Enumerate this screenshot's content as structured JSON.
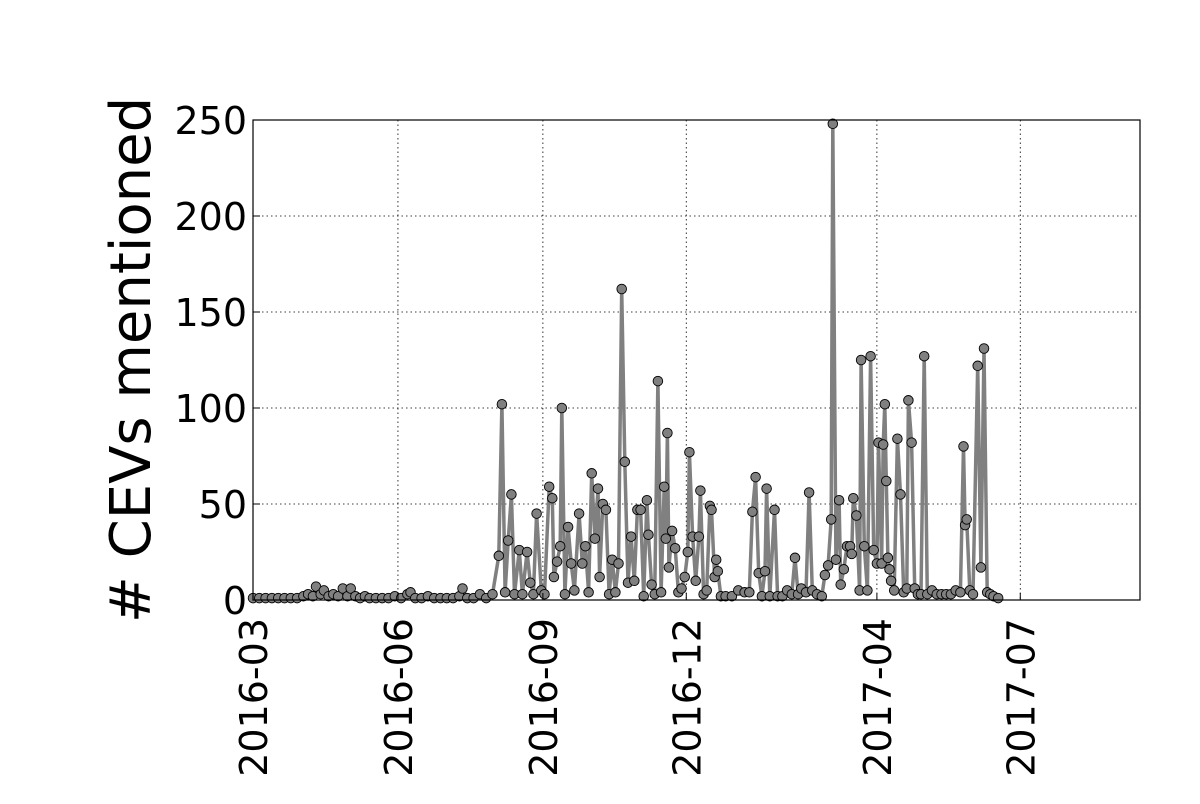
{
  "chart_data": {
    "type": "line",
    "title": "",
    "xlabel": "",
    "ylabel": "# CEVs mentioned",
    "x_range": [
      "2016-03-01",
      "2017-09-15"
    ],
    "ylim": [
      0,
      250
    ],
    "x_ticks": [
      "2016-03",
      "2016-06",
      "2016-09",
      "2016-12",
      "2017-04",
      "2017-07"
    ],
    "y_ticks": [
      "0",
      "50",
      "100",
      "150",
      "200",
      "250"
    ],
    "grid": true,
    "colors": {
      "line": "#808080",
      "marker": "#808080",
      "marker_edge": "#000000"
    },
    "series": [
      {
        "points": [
          [
            "2016-03-01",
            1
          ],
          [
            "2016-03-05",
            1
          ],
          [
            "2016-03-09",
            1
          ],
          [
            "2016-03-13",
            1
          ],
          [
            "2016-03-17",
            1
          ],
          [
            "2016-03-21",
            1
          ],
          [
            "2016-03-25",
            1
          ],
          [
            "2016-03-29",
            1
          ],
          [
            "2016-04-02",
            2
          ],
          [
            "2016-04-05",
            3
          ],
          [
            "2016-04-08",
            2
          ],
          [
            "2016-04-10",
            7
          ],
          [
            "2016-04-13",
            3
          ],
          [
            "2016-04-15",
            5
          ],
          [
            "2016-04-18",
            2
          ],
          [
            "2016-04-21",
            3
          ],
          [
            "2016-04-24",
            2
          ],
          [
            "2016-04-27",
            6
          ],
          [
            "2016-04-30",
            2
          ],
          [
            "2016-05-02",
            6
          ],
          [
            "2016-05-05",
            2
          ],
          [
            "2016-05-08",
            1
          ],
          [
            "2016-05-11",
            2
          ],
          [
            "2016-05-14",
            1
          ],
          [
            "2016-05-18",
            1
          ],
          [
            "2016-05-22",
            1
          ],
          [
            "2016-05-26",
            1
          ],
          [
            "2016-05-30",
            2
          ],
          [
            "2016-06-03",
            1
          ],
          [
            "2016-06-07",
            3
          ],
          [
            "2016-06-09",
            4
          ],
          [
            "2016-06-12",
            1
          ],
          [
            "2016-06-16",
            1
          ],
          [
            "2016-06-20",
            2
          ],
          [
            "2016-06-24",
            1
          ],
          [
            "2016-06-28",
            1
          ],
          [
            "2016-07-02",
            1
          ],
          [
            "2016-07-06",
            1
          ],
          [
            "2016-07-10",
            2
          ],
          [
            "2016-07-12",
            6
          ],
          [
            "2016-07-15",
            1
          ],
          [
            "2016-07-19",
            1
          ],
          [
            "2016-07-23",
            3
          ],
          [
            "2016-07-27",
            1
          ],
          [
            "2016-07-31",
            3
          ],
          [
            "2016-08-04",
            23
          ],
          [
            "2016-08-06",
            102
          ],
          [
            "2016-08-08",
            4
          ],
          [
            "2016-08-10",
            31
          ],
          [
            "2016-08-12",
            55
          ],
          [
            "2016-08-14",
            3
          ],
          [
            "2016-08-17",
            26
          ],
          [
            "2016-08-19",
            3
          ],
          [
            "2016-08-22",
            25
          ],
          [
            "2016-08-24",
            9
          ],
          [
            "2016-08-26",
            3
          ],
          [
            "2016-08-28",
            45
          ],
          [
            "2016-08-31",
            5
          ],
          [
            "2016-09-02",
            3
          ],
          [
            "2016-09-05",
            59
          ],
          [
            "2016-09-07",
            53
          ],
          [
            "2016-09-08",
            12
          ],
          [
            "2016-09-10",
            20
          ],
          [
            "2016-09-12",
            28
          ],
          [
            "2016-09-13",
            100
          ],
          [
            "2016-09-15",
            3
          ],
          [
            "2016-09-17",
            38
          ],
          [
            "2016-09-19",
            19
          ],
          [
            "2016-09-21",
            5
          ],
          [
            "2016-09-24",
            45
          ],
          [
            "2016-09-26",
            19
          ],
          [
            "2016-09-28",
            28
          ],
          [
            "2016-09-30",
            4
          ],
          [
            "2016-10-02",
            66
          ],
          [
            "2016-10-04",
            32
          ],
          [
            "2016-10-06",
            58
          ],
          [
            "2016-10-07",
            12
          ],
          [
            "2016-10-09",
            50
          ],
          [
            "2016-10-11",
            47
          ],
          [
            "2016-10-13",
            3
          ],
          [
            "2016-10-15",
            21
          ],
          [
            "2016-10-17",
            4
          ],
          [
            "2016-10-19",
            19
          ],
          [
            "2016-10-21",
            162
          ],
          [
            "2016-10-23",
            72
          ],
          [
            "2016-10-25",
            9
          ],
          [
            "2016-10-27",
            33
          ],
          [
            "2016-10-29",
            10
          ],
          [
            "2016-10-31",
            47
          ],
          [
            "2016-11-02",
            47
          ],
          [
            "2016-11-04",
            2
          ],
          [
            "2016-11-06",
            52
          ],
          [
            "2016-11-07",
            34
          ],
          [
            "2016-11-09",
            8
          ],
          [
            "2016-11-11",
            3
          ],
          [
            "2016-11-13",
            114
          ],
          [
            "2016-11-15",
            4
          ],
          [
            "2016-11-17",
            59
          ],
          [
            "2016-11-18",
            32
          ],
          [
            "2016-11-19",
            87
          ],
          [
            "2016-11-20",
            17
          ],
          [
            "2016-11-22",
            36
          ],
          [
            "2016-11-24",
            27
          ],
          [
            "2016-11-26",
            4
          ],
          [
            "2016-11-28",
            6
          ],
          [
            "2016-11-30",
            12
          ],
          [
            "2016-12-02",
            25
          ],
          [
            "2016-12-03",
            77
          ],
          [
            "2016-12-05",
            33
          ],
          [
            "2016-12-07",
            10
          ],
          [
            "2016-12-09",
            33
          ],
          [
            "2016-12-10",
            57
          ],
          [
            "2016-12-12",
            3
          ],
          [
            "2016-12-14",
            5
          ],
          [
            "2016-12-16",
            49
          ],
          [
            "2016-12-17",
            47
          ],
          [
            "2016-12-19",
            12
          ],
          [
            "2016-12-20",
            21
          ],
          [
            "2016-12-21",
            15
          ],
          [
            "2016-12-23",
            2
          ],
          [
            "2016-12-26",
            2
          ],
          [
            "2016-12-30",
            2
          ],
          [
            "2017-01-03",
            5
          ],
          [
            "2017-01-07",
            4
          ],
          [
            "2017-01-10",
            4
          ],
          [
            "2017-01-12",
            46
          ],
          [
            "2017-01-14",
            64
          ],
          [
            "2017-01-16",
            14
          ],
          [
            "2017-01-18",
            2
          ],
          [
            "2017-01-20",
            15
          ],
          [
            "2017-01-21",
            58
          ],
          [
            "2017-01-23",
            2
          ],
          [
            "2017-01-26",
            47
          ],
          [
            "2017-01-28",
            2
          ],
          [
            "2017-01-31",
            2
          ],
          [
            "2017-02-03",
            5
          ],
          [
            "2017-02-06",
            3
          ],
          [
            "2017-02-08",
            22
          ],
          [
            "2017-02-10",
            3
          ],
          [
            "2017-02-12",
            6
          ],
          [
            "2017-02-15",
            4
          ],
          [
            "2017-02-17",
            56
          ],
          [
            "2017-02-19",
            5
          ],
          [
            "2017-02-22",
            3
          ],
          [
            "2017-02-25",
            2
          ],
          [
            "2017-02-27",
            13
          ],
          [
            "2017-03-01",
            18
          ],
          [
            "2017-03-03",
            42
          ],
          [
            "2017-03-04",
            248
          ],
          [
            "2017-03-06",
            21
          ],
          [
            "2017-03-08",
            52
          ],
          [
            "2017-03-09",
            8
          ],
          [
            "2017-03-11",
            16
          ],
          [
            "2017-03-13",
            28
          ],
          [
            "2017-03-15",
            28
          ],
          [
            "2017-03-16",
            24
          ],
          [
            "2017-03-17",
            53
          ],
          [
            "2017-03-19",
            44
          ],
          [
            "2017-03-21",
            5
          ],
          [
            "2017-03-22",
            125
          ],
          [
            "2017-03-24",
            28
          ],
          [
            "2017-03-26",
            5
          ],
          [
            "2017-03-28",
            127
          ],
          [
            "2017-03-30",
            26
          ],
          [
            "2017-04-01",
            19
          ],
          [
            "2017-04-02",
            82
          ],
          [
            "2017-04-04",
            19
          ],
          [
            "2017-04-05",
            81
          ],
          [
            "2017-04-06",
            102
          ],
          [
            "2017-04-07",
            62
          ],
          [
            "2017-04-08",
            22
          ],
          [
            "2017-04-09",
            16
          ],
          [
            "2017-04-10",
            10
          ],
          [
            "2017-04-12",
            5
          ],
          [
            "2017-04-14",
            84
          ],
          [
            "2017-04-16",
            55
          ],
          [
            "2017-04-18",
            4
          ],
          [
            "2017-04-20",
            6
          ],
          [
            "2017-04-21",
            104
          ],
          [
            "2017-04-23",
            82
          ],
          [
            "2017-04-25",
            6
          ],
          [
            "2017-04-27",
            3
          ],
          [
            "2017-04-29",
            3
          ],
          [
            "2017-05-01",
            127
          ],
          [
            "2017-05-03",
            3
          ],
          [
            "2017-05-06",
            5
          ],
          [
            "2017-05-09",
            3
          ],
          [
            "2017-05-12",
            3
          ],
          [
            "2017-05-15",
            3
          ],
          [
            "2017-05-18",
            3
          ],
          [
            "2017-05-21",
            5
          ],
          [
            "2017-05-24",
            4
          ],
          [
            "2017-05-26",
            80
          ],
          [
            "2017-05-27",
            39
          ],
          [
            "2017-05-28",
            42
          ],
          [
            "2017-05-30",
            5
          ],
          [
            "2017-06-01",
            3
          ],
          [
            "2017-06-04",
            122
          ],
          [
            "2017-06-06",
            17
          ],
          [
            "2017-06-08",
            131
          ],
          [
            "2017-06-10",
            4
          ],
          [
            "2017-06-12",
            3
          ],
          [
            "2017-06-14",
            2
          ],
          [
            "2017-06-17",
            1
          ]
        ]
      }
    ]
  }
}
